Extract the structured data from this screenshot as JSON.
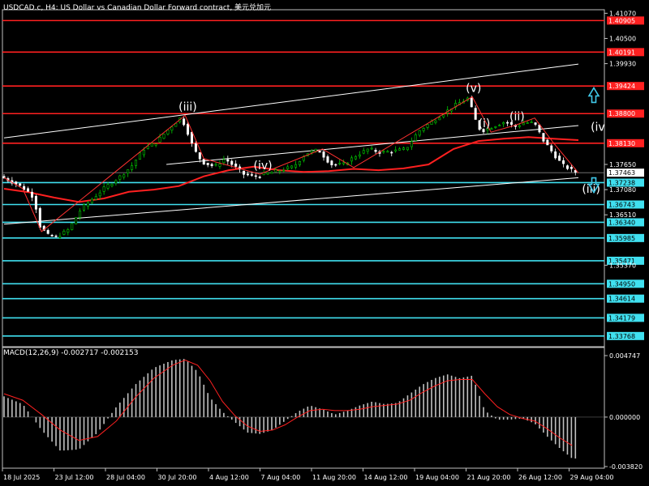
{
  "header": {
    "title": "USDCAD.c, H4:  US Dollar vs Canadian Dollar Forward contract,  美元兑加元"
  },
  "macd_header": {
    "title": "MACD(12,26,9) -0.002717 -0.002153"
  },
  "colors": {
    "background": "#000000",
    "bull_candle": "#00cc00",
    "bear_candle": "#ffffff",
    "resistance": "#ff2020",
    "support": "#40e0f0",
    "moving_average": "#ff2020",
    "channel": "#ffffff",
    "arrow": "#40c8e8",
    "macd_hist": "#c0c0c0",
    "macd_signal": "#ff2020"
  },
  "chart_data": [
    {
      "type": "candlestick",
      "symbol": "USDCAD.c",
      "timeframe": "H4",
      "x_ticks": [
        "18 Jul 2025",
        "23 Jul 12:00",
        "28 Jul 04:00",
        "30 Jul 20:00",
        "4 Aug 12:00",
        "7 Aug 04:00",
        "11 Aug 20:00",
        "14 Aug 12:00",
        "19 Aug 04:00",
        "21 Aug 20:00",
        "26 Aug 12:00",
        "29 Aug 04:00"
      ],
      "y_ticks": [
        "1.41070",
        "1.40500",
        "1.39930",
        "1.37650",
        "1.37080",
        "1.36510",
        "1.35370"
      ],
      "ylim": [
        1.336,
        1.4115
      ],
      "resistance_levels": [
        1.40905,
        1.40191,
        1.39424,
        1.388,
        1.3813
      ],
      "resistance_labels": [
        "1.40905",
        "1.40191",
        "1.39424",
        "1.38800",
        "1.38130"
      ],
      "support_levels": [
        1.37238,
        1.36743,
        1.3634,
        1.35985,
        1.35471,
        1.3495,
        1.34614,
        1.34179,
        1.33768
      ],
      "support_labels": [
        "1.37238",
        "1.36743",
        "1.36340",
        "1.35985",
        "1.35471",
        "1.34950",
        "1.34614",
        "1.34179",
        "1.33768"
      ],
      "current_price": 1.37463,
      "current_price_label": "1.37463",
      "moving_average": [
        [
          0,
          1.371
        ],
        [
          20,
          1.3702
        ],
        [
          40,
          1.369
        ],
        [
          60,
          1.368
        ],
        [
          80,
          1.3688
        ],
        [
          100,
          1.3703
        ],
        [
          120,
          1.3708
        ],
        [
          140,
          1.3716
        ],
        [
          160,
          1.3738
        ],
        [
          180,
          1.3752
        ],
        [
          200,
          1.376
        ],
        [
          220,
          1.3752
        ],
        [
          240,
          1.3748
        ],
        [
          260,
          1.375
        ],
        [
          280,
          1.3755
        ],
        [
          300,
          1.3752
        ],
        [
          320,
          1.3756
        ],
        [
          340,
          1.3765
        ],
        [
          360,
          1.38
        ],
        [
          380,
          1.3818
        ],
        [
          400,
          1.3823
        ],
        [
          420,
          1.3827
        ],
        [
          440,
          1.3823
        ],
        [
          460,
          1.382
        ]
      ],
      "channel_upper": [
        [
          0,
          1.3825
        ],
        [
          460,
          1.3992
        ]
      ],
      "channel_lower": [
        [
          0,
          1.363
        ],
        [
          460,
          1.3735
        ]
      ],
      "channel_mid": [
        [
          130,
          1.3765
        ],
        [
          460,
          1.3853
        ]
      ],
      "wave_path": [
        [
          0,
          1.3735
        ],
        [
          15,
          1.371
        ],
        [
          30,
          1.3613
        ],
        [
          145,
          1.3876
        ],
        [
          160,
          1.3778
        ],
        [
          205,
          1.3743
        ],
        [
          255,
          1.38
        ],
        [
          280,
          1.3758
        ],
        [
          375,
          1.3918
        ],
        [
          390,
          1.3838
        ],
        [
          410,
          1.3854
        ],
        [
          425,
          1.387
        ],
        [
          440,
          1.3814
        ],
        [
          460,
          1.3746
        ]
      ],
      "wave_labels": [
        {
          "text": "(iii)",
          "x": 145,
          "y": 1.3876
        },
        {
          "text": "(iv)",
          "x": 205,
          "y": 1.3743
        },
        {
          "text": "(v)",
          "x": 375,
          "y": 1.3918
        },
        {
          "text": "(ii)",
          "x": 410,
          "y": 1.3854
        },
        {
          "text": "(i)",
          "x": 385,
          "y": 1.3838
        },
        {
          "text": "(iv",
          "x": 475,
          "y": 1.383
        },
        {
          "text": "(iii)",
          "x": 468,
          "y": 1.369
        }
      ],
      "arrows": [
        {
          "direction": "up",
          "y": 1.392
        },
        {
          "direction": "down",
          "y": 1.372
        }
      ],
      "price_path": [
        [
          0,
          1.3738
        ],
        [
          8,
          1.3728
        ],
        [
          15,
          1.3718
        ],
        [
          22,
          1.3705
        ],
        [
          27,
          1.369
        ],
        [
          32,
          1.3625
        ],
        [
          38,
          1.3605
        ],
        [
          45,
          1.36
        ],
        [
          55,
          1.3618
        ],
        [
          65,
          1.3665
        ],
        [
          75,
          1.369
        ],
        [
          85,
          1.3715
        ],
        [
          95,
          1.3735
        ],
        [
          105,
          1.376
        ],
        [
          115,
          1.38
        ],
        [
          125,
          1.3815
        ],
        [
          135,
          1.3845
        ],
        [
          145,
          1.3872
        ],
        [
          150,
          1.384
        ],
        [
          155,
          1.38
        ],
        [
          162,
          1.377
        ],
        [
          172,
          1.376
        ],
        [
          180,
          1.3778
        ],
        [
          188,
          1.376
        ],
        [
          195,
          1.3743
        ],
        [
          205,
          1.3738
        ],
        [
          215,
          1.3745
        ],
        [
          225,
          1.3752
        ],
        [
          235,
          1.376
        ],
        [
          245,
          1.379
        ],
        [
          255,
          1.3798
        ],
        [
          265,
          1.3765
        ],
        [
          275,
          1.3765
        ],
        [
          285,
          1.3785
        ],
        [
          295,
          1.38
        ],
        [
          305,
          1.3792
        ],
        [
          315,
          1.3795
        ],
        [
          325,
          1.38
        ],
        [
          335,
          1.384
        ],
        [
          345,
          1.386
        ],
        [
          355,
          1.388
        ],
        [
          365,
          1.39
        ],
        [
          375,
          1.3915
        ],
        [
          380,
          1.387
        ],
        [
          385,
          1.384
        ],
        [
          390,
          1.3845
        ],
        [
          398,
          1.3855
        ],
        [
          405,
          1.3862
        ],
        [
          412,
          1.385
        ],
        [
          420,
          1.386
        ],
        [
          428,
          1.3858
        ],
        [
          435,
          1.382
        ],
        [
          443,
          1.379
        ],
        [
          450,
          1.3765
        ],
        [
          460,
          1.3748
        ]
      ]
    },
    {
      "type": "macd",
      "title": "MACD(12,26,9) -0.002717 -0.002153",
      "y_ticks": [
        "0.004747",
        "0.000000",
        "-0.003820"
      ],
      "ylim": [
        -0.00382,
        0.004747
      ],
      "histogram": [
        [
          0,
          0.0016
        ],
        [
          15,
          0.001
        ],
        [
          30,
          -0.001
        ],
        [
          45,
          -0.0026
        ],
        [
          60,
          -0.0025
        ],
        [
          75,
          -0.0012
        ],
        [
          90,
          0.0008
        ],
        [
          105,
          0.0025
        ],
        [
          120,
          0.0038
        ],
        [
          135,
          0.0044
        ],
        [
          145,
          0.0045
        ],
        [
          155,
          0.0035
        ],
        [
          165,
          0.0015
        ],
        [
          175,
          0.0004
        ],
        [
          185,
          -0.0004
        ],
        [
          195,
          -0.0012
        ],
        [
          205,
          -0.0013
        ],
        [
          215,
          -0.001
        ],
        [
          225,
          -0.0003
        ],
        [
          235,
          0.0004
        ],
        [
          245,
          0.0009
        ],
        [
          255,
          0.0006
        ],
        [
          265,
          0.0002
        ],
        [
          275,
          0.0005
        ],
        [
          285,
          0.0009
        ],
        [
          295,
          0.0012
        ],
        [
          305,
          0.001
        ],
        [
          315,
          0.0011
        ],
        [
          325,
          0.0018
        ],
        [
          335,
          0.0025
        ],
        [
          345,
          0.003
        ],
        [
          355,
          0.0033
        ],
        [
          365,
          0.003
        ],
        [
          375,
          0.0032
        ],
        [
          385,
          0.0005
        ],
        [
          395,
          -0.0002
        ],
        [
          405,
          -0.0002
        ],
        [
          415,
          -0.0001
        ],
        [
          425,
          -0.0005
        ],
        [
          435,
          -0.0015
        ],
        [
          445,
          -0.0024
        ],
        [
          455,
          -0.0032
        ]
      ],
      "signal": [
        [
          0,
          0.0018
        ],
        [
          15,
          0.0013
        ],
        [
          30,
          0.0002
        ],
        [
          45,
          -0.001
        ],
        [
          60,
          -0.0018
        ],
        [
          75,
          -0.0015
        ],
        [
          90,
          -0.0003
        ],
        [
          105,
          0.0015
        ],
        [
          120,
          0.003
        ],
        [
          135,
          0.004
        ],
        [
          145,
          0.0044
        ],
        [
          155,
          0.004
        ],
        [
          165,
          0.0028
        ],
        [
          175,
          0.0012
        ],
        [
          185,
          0.0001
        ],
        [
          195,
          -0.0007
        ],
        [
          205,
          -0.0011
        ],
        [
          215,
          -0.001
        ],
        [
          225,
          -0.0006
        ],
        [
          235,
          0.0
        ],
        [
          245,
          0.0005
        ],
        [
          255,
          0.0006
        ],
        [
          265,
          0.0005
        ],
        [
          275,
          0.0005
        ],
        [
          285,
          0.0006
        ],
        [
          295,
          0.0008
        ],
        [
          305,
          0.0009
        ],
        [
          315,
          0.001
        ],
        [
          325,
          0.0013
        ],
        [
          335,
          0.0019
        ],
        [
          345,
          0.0024
        ],
        [
          355,
          0.0028
        ],
        [
          365,
          0.0029
        ],
        [
          375,
          0.0029
        ],
        [
          385,
          0.0018
        ],
        [
          395,
          0.0008
        ],
        [
          405,
          0.0002
        ],
        [
          415,
          -0.0001
        ],
        [
          425,
          -0.0003
        ],
        [
          435,
          -0.0009
        ],
        [
          445,
          -0.0016
        ],
        [
          455,
          -0.0022
        ]
      ]
    }
  ]
}
